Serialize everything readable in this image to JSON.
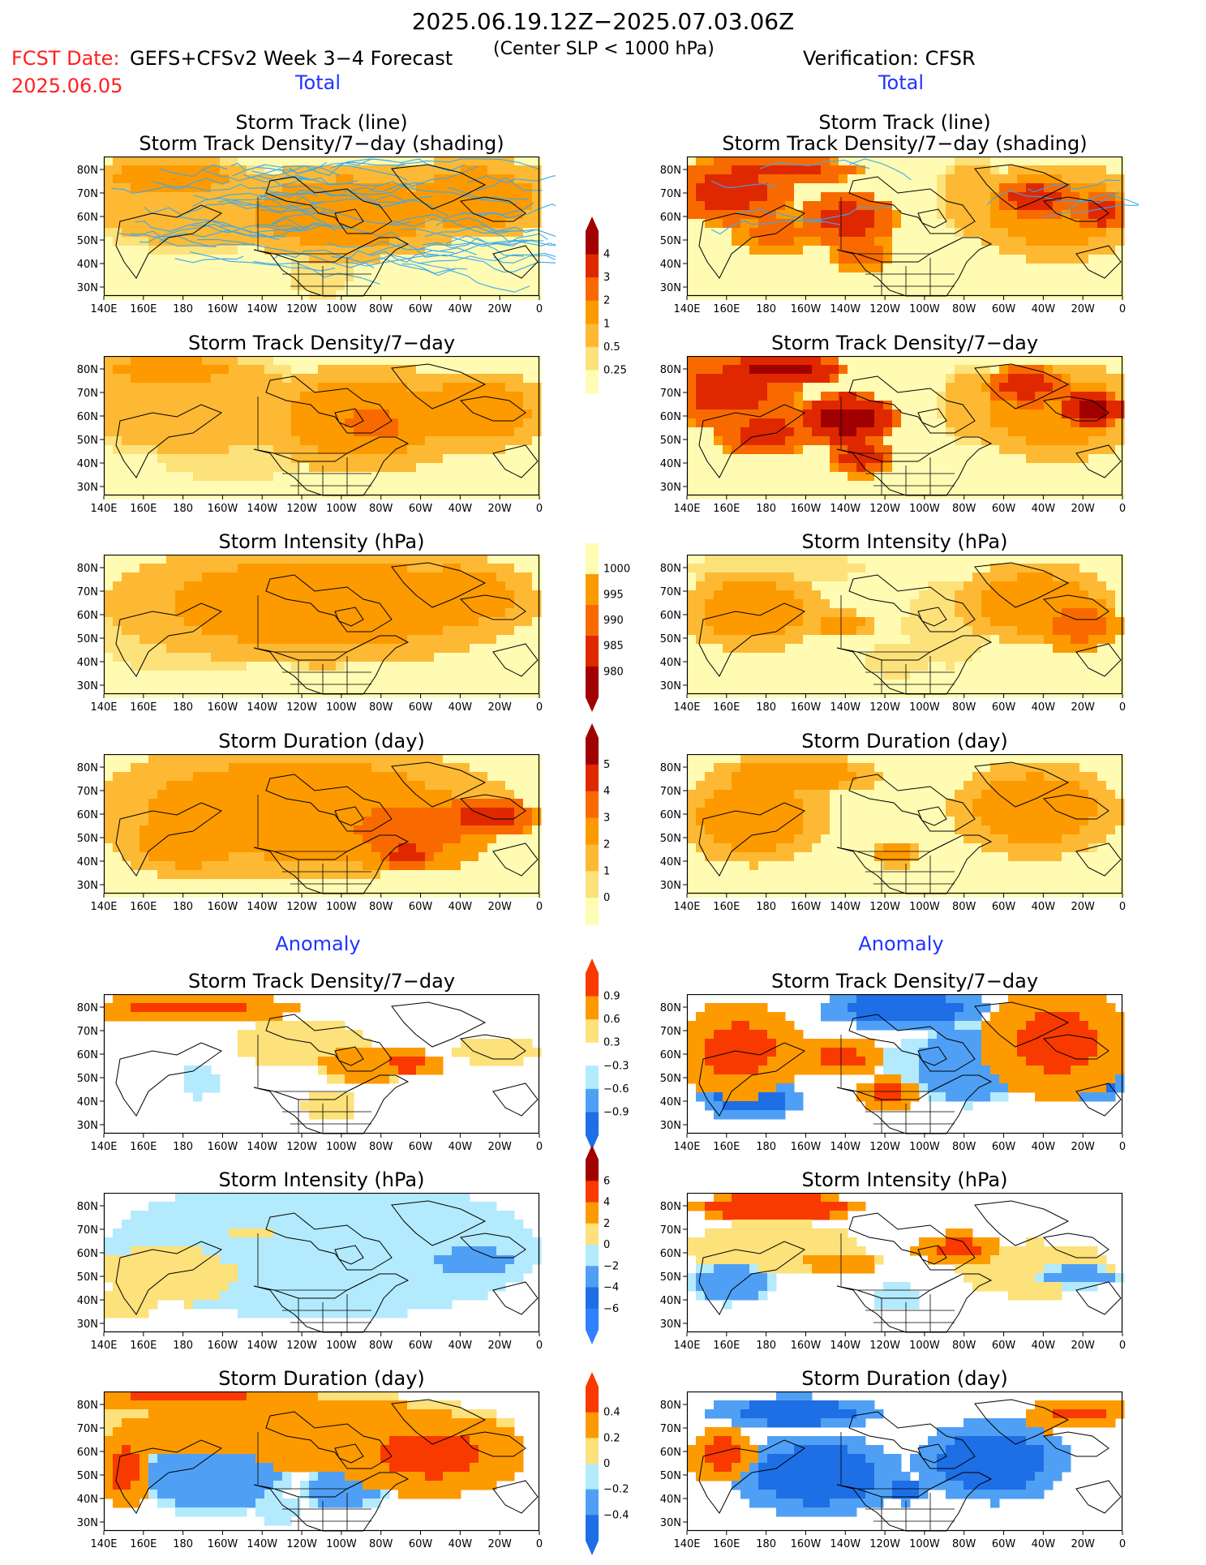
{
  "header": {
    "title": "2025.06.19.12Z−2025.07.03.06Z",
    "fcst_label": "FCST Date:",
    "fcst_date": "2025.06.05",
    "model_label": "GEFS+CFSv2 Week 3−4 Forecast",
    "center_label": "(Center SLP < 1000 hPa)",
    "verification_label": "Verification: CFSR"
  },
  "sections": {
    "total": "Total",
    "anomaly": "Anomaly"
  },
  "panel_titles": {
    "track_line": "Storm Track (line)",
    "track_shading": "Storm Track Density/7−day (shading)",
    "density": "Storm Track Density/7−day",
    "intensity": "Storm Intensity (hPa)",
    "duration": "Storm Duration (day)"
  },
  "axes": {
    "lat_ticks": [
      "80N",
      "70N",
      "60N",
      "50N",
      "40N",
      "30N"
    ],
    "lon_ticks": [
      "140E",
      "160E",
      "180",
      "160W",
      "140W",
      "120W",
      "100W",
      "80W",
      "60W",
      "40W",
      "20W",
      "0"
    ]
  },
  "colors": {
    "c0": "#fffbb3",
    "c1": "#fde17a",
    "c2": "#fdb933",
    "c3": "#fd9a00",
    "c4": "#f86a00",
    "c5": "#e02800",
    "c6": "#a00000",
    "a_neg3": "#1e6ee6",
    "a_neg2": "#4fa0f5",
    "a_neg1": "#b3eafd",
    "a_pos1": "#fde17a",
    "a_pos2": "#fd9a00",
    "a_pos3": "#f83a00",
    "track": "#39a9f0"
  },
  "colorbars": {
    "density": {
      "labels": [
        "4",
        "3",
        "2",
        "1",
        "0.5",
        "0.25"
      ]
    },
    "intensity": {
      "labels": [
        "1000",
        "995",
        "990",
        "985",
        "980"
      ]
    },
    "duration": {
      "labels": [
        "5",
        "4",
        "3",
        "2",
        "1",
        "0"
      ]
    },
    "anom_density": {
      "labels": [
        "0.9",
        "0.6",
        "0.3",
        "−0.3",
        "−0.6",
        "−0.9"
      ]
    },
    "anom_intensity": {
      "labels": [
        "6",
        "4",
        "2",
        "0",
        "−2",
        "−4",
        "−6"
      ]
    },
    "anom_duration": {
      "labels": [
        "0.4",
        "0.2",
        "0",
        "−0.2",
        "−0.4"
      ]
    }
  }
}
